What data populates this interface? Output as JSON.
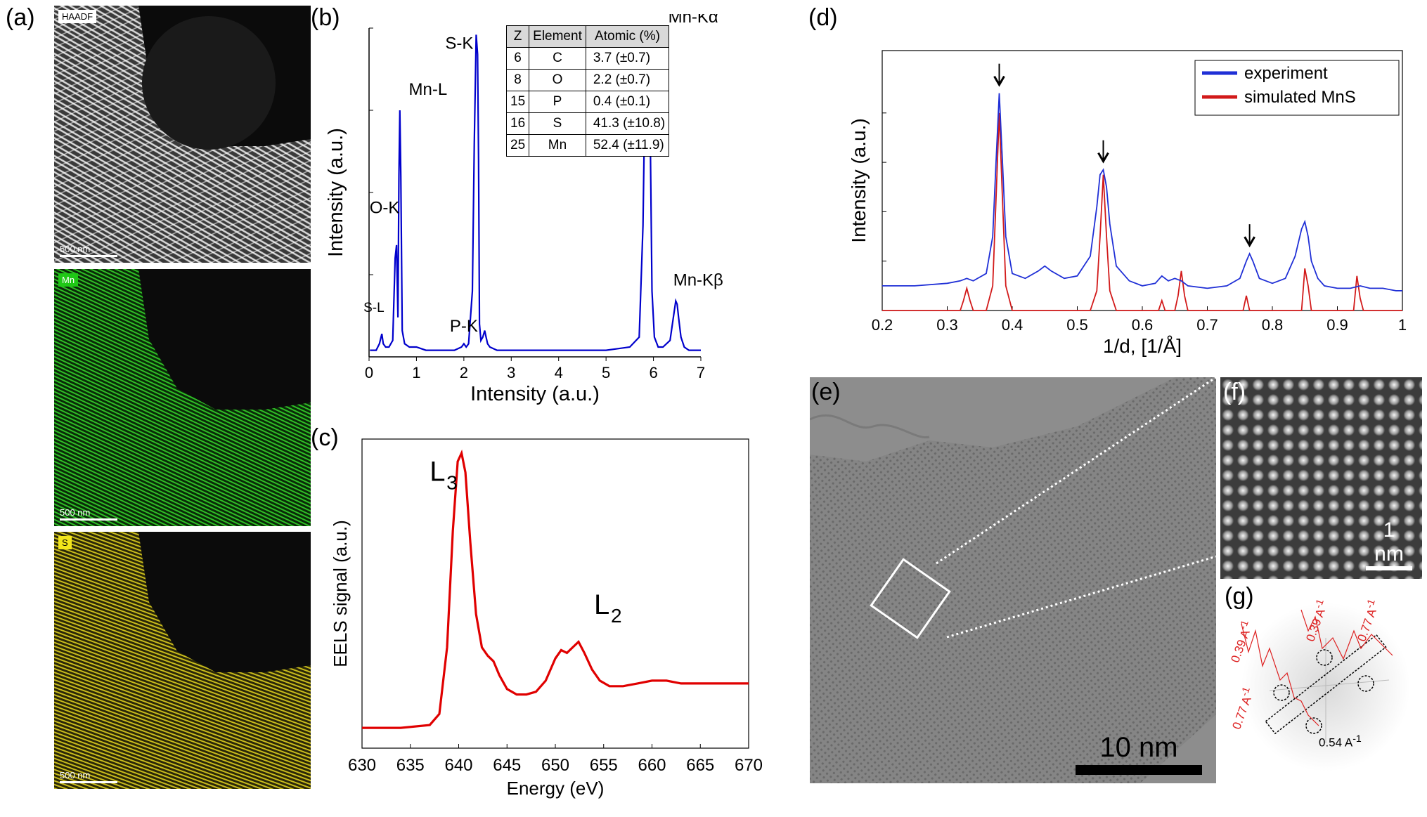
{
  "panels": {
    "a": "(a)",
    "b": "(b)",
    "c": "(c)",
    "d": "(d)",
    "e": "(e)",
    "f": "(f)",
    "g": "(g)"
  },
  "panel_a": {
    "maps": [
      {
        "badge": "HAADF",
        "scale": "500 nm",
        "color": "#bfbfbf"
      },
      {
        "badge": "Mn",
        "scale": "500 nm",
        "color": "#1fa81a"
      },
      {
        "badge": "S",
        "scale": "500 nm",
        "color": "#b8ad12"
      }
    ]
  },
  "panel_b": {
    "table": {
      "headers": [
        "Z",
        "Element",
        "Atomic (%)"
      ],
      "rows": [
        [
          "6",
          "C",
          "3.7 (±0.7)"
        ],
        [
          "8",
          "O",
          "2.2 (±0.7)"
        ],
        [
          "15",
          "P",
          "0.4 (±0.1)"
        ],
        [
          "16",
          "S",
          "41.3 (±10.8)"
        ],
        [
          "25",
          "Mn",
          "52.4 (±11.9)"
        ]
      ]
    }
  },
  "panel_e": {
    "scale": "10 nm"
  },
  "panel_f": {
    "scale": "1 nm"
  },
  "panel_g": {
    "labels": [
      "0.39 A",
      "0.77 A",
      "0.39 A",
      "0.77 A",
      "0.54 A"
    ],
    "superscript": "-1"
  },
  "chart_data": [
    {
      "id": "b",
      "type": "line",
      "xlabel": "Intensity (a.u.)",
      "ylabel": "Intensity (a.u.)",
      "xlim": [
        0,
        7
      ],
      "xticks": [
        0,
        1,
        2,
        3,
        4,
        5,
        6,
        7
      ],
      "color": "#0000cc",
      "series": [
        {
          "x": [
            0.02,
            0.15,
            0.22,
            0.27,
            0.3,
            0.35,
            0.42,
            0.5,
            0.55,
            0.58,
            0.61,
            0.63,
            0.65,
            0.67,
            0.7,
            0.75,
            0.85,
            1.0,
            1.2,
            1.5,
            1.8,
            1.95,
            2.0,
            2.05,
            2.1,
            2.18,
            2.22,
            2.26,
            2.29,
            2.31,
            2.33,
            2.36,
            2.4,
            2.44,
            2.47,
            2.5,
            2.55,
            2.7,
            3.0,
            3.5,
            4.0,
            4.5,
            5.0,
            5.5,
            5.7,
            5.78,
            5.83,
            5.87,
            5.9,
            5.93,
            5.97,
            6.02,
            6.1,
            6.2,
            6.35,
            6.42,
            6.47,
            6.5,
            6.53,
            6.58,
            6.65,
            6.75,
            6.9,
            7.0
          ],
          "y": [
            0.02,
            0.02,
            0.04,
            0.07,
            0.04,
            0.03,
            0.03,
            0.05,
            0.3,
            0.34,
            0.12,
            0.55,
            0.75,
            0.55,
            0.08,
            0.04,
            0.03,
            0.03,
            0.02,
            0.02,
            0.02,
            0.03,
            0.04,
            0.03,
            0.04,
            0.2,
            0.65,
            0.98,
            0.92,
            0.6,
            0.1,
            0.05,
            0.06,
            0.08,
            0.06,
            0.04,
            0.03,
            0.02,
            0.02,
            0.02,
            0.02,
            0.02,
            0.02,
            0.03,
            0.06,
            0.4,
            0.9,
            0.99,
            0.95,
            0.7,
            0.2,
            0.06,
            0.03,
            0.03,
            0.05,
            0.12,
            0.17,
            0.16,
            0.12,
            0.06,
            0.03,
            0.02,
            0.02,
            0.02
          ]
        }
      ],
      "annotations": [
        "S-L",
        "O-K",
        "Mn-L",
        "P-K",
        "S-K",
        "Mn-Kα",
        "Mn-Kβ"
      ]
    },
    {
      "id": "c",
      "type": "line",
      "xlabel": "Energy (eV)",
      "ylabel": "EELS signal (a.u.)",
      "xlim": [
        630,
        670
      ],
      "xticks": [
        630,
        635,
        640,
        645,
        650,
        655,
        660,
        665,
        670
      ],
      "color": "#e00000",
      "series": [
        {
          "x": [
            630,
            634,
            637,
            638,
            638.8,
            639.4,
            639.9,
            640.3,
            640.7,
            641.2,
            641.8,
            642.4,
            643.0,
            643.6,
            644.2,
            645.0,
            646.0,
            647.0,
            648.0,
            649.0,
            650.0,
            650.6,
            651.2,
            651.8,
            652.4,
            653.0,
            653.8,
            654.6,
            655.6,
            657.0,
            658.5,
            660.0,
            661.5,
            663.0,
            665.0,
            667.5,
            670.0
          ],
          "y": [
            0.01,
            0.01,
            0.02,
            0.06,
            0.3,
            0.72,
            0.97,
            1.0,
            0.93,
            0.68,
            0.42,
            0.3,
            0.27,
            0.25,
            0.2,
            0.15,
            0.13,
            0.13,
            0.14,
            0.18,
            0.26,
            0.29,
            0.28,
            0.3,
            0.32,
            0.28,
            0.22,
            0.18,
            0.16,
            0.16,
            0.17,
            0.18,
            0.18,
            0.17,
            0.17,
            0.17,
            0.17
          ]
        }
      ],
      "annotations": [
        "L",
        "3",
        "L",
        "2"
      ]
    },
    {
      "id": "d",
      "type": "line",
      "xlabel": "1/d, [1/Å]",
      "ylabel": "Intensity (a.u.)",
      "xlim": [
        0.2,
        1.0
      ],
      "xticks": [
        0.2,
        0.3,
        0.4,
        0.5,
        0.6,
        0.7,
        0.8,
        0.9,
        1
      ],
      "xtick_labels": [
        "0.2",
        "0.3",
        "0.4",
        "0.5",
        "0.6",
        "0.7",
        "0.8",
        "0.9",
        "1"
      ],
      "legend": {
        "position": "top-right",
        "entries": [
          "experiment",
          "simulated MnS"
        ]
      },
      "series": [
        {
          "name": "experiment",
          "color": "#1f2fd6",
          "x": [
            0.2,
            0.25,
            0.3,
            0.32,
            0.33,
            0.34,
            0.36,
            0.37,
            0.375,
            0.38,
            0.385,
            0.39,
            0.4,
            0.42,
            0.44,
            0.45,
            0.46,
            0.48,
            0.5,
            0.52,
            0.53,
            0.535,
            0.54,
            0.545,
            0.55,
            0.56,
            0.58,
            0.6,
            0.62,
            0.63,
            0.64,
            0.65,
            0.66,
            0.67,
            0.7,
            0.73,
            0.75,
            0.76,
            0.765,
            0.77,
            0.78,
            0.8,
            0.82,
            0.835,
            0.845,
            0.85,
            0.855,
            0.86,
            0.87,
            0.88,
            0.9,
            0.92,
            0.935,
            0.95,
            0.97,
            0.99,
            1.0
          ],
          "y": [
            0.1,
            0.1,
            0.11,
            0.12,
            0.13,
            0.12,
            0.15,
            0.3,
            0.6,
            0.88,
            0.6,
            0.3,
            0.15,
            0.13,
            0.16,
            0.18,
            0.16,
            0.13,
            0.14,
            0.22,
            0.42,
            0.55,
            0.57,
            0.5,
            0.35,
            0.18,
            0.12,
            0.1,
            0.11,
            0.14,
            0.12,
            0.13,
            0.12,
            0.1,
            0.09,
            0.1,
            0.13,
            0.2,
            0.23,
            0.2,
            0.13,
            0.11,
            0.13,
            0.22,
            0.33,
            0.36,
            0.3,
            0.2,
            0.13,
            0.1,
            0.09,
            0.09,
            0.1,
            0.09,
            0.09,
            0.08,
            0.08
          ]
        },
        {
          "name": "simulated MnS",
          "color": "#d21a1a",
          "x": [
            0.2,
            0.32,
            0.325,
            0.33,
            0.335,
            0.34,
            0.36,
            0.37,
            0.375,
            0.38,
            0.385,
            0.39,
            0.4,
            0.52,
            0.53,
            0.535,
            0.54,
            0.545,
            0.55,
            0.56,
            0.625,
            0.63,
            0.635,
            0.65,
            0.655,
            0.66,
            0.665,
            0.67,
            0.755,
            0.76,
            0.765,
            0.77,
            0.845,
            0.85,
            0.855,
            0.86,
            0.925,
            0.93,
            0.935,
            0.94,
            1.0
          ],
          "y": [
            0.0,
            0.0,
            0.04,
            0.09,
            0.04,
            0.0,
            0.0,
            0.1,
            0.45,
            0.8,
            0.45,
            0.1,
            0.0,
            0.0,
            0.08,
            0.3,
            0.55,
            0.3,
            0.08,
            0.0,
            0.0,
            0.04,
            0.0,
            0.0,
            0.06,
            0.16,
            0.06,
            0.0,
            0.0,
            0.06,
            0.0,
            0.0,
            0.0,
            0.17,
            0.1,
            0.0,
            0.0,
            0.14,
            0.05,
            0.0,
            0.0
          ]
        }
      ],
      "arrows_at": [
        0.38,
        0.54,
        0.765
      ]
    }
  ]
}
